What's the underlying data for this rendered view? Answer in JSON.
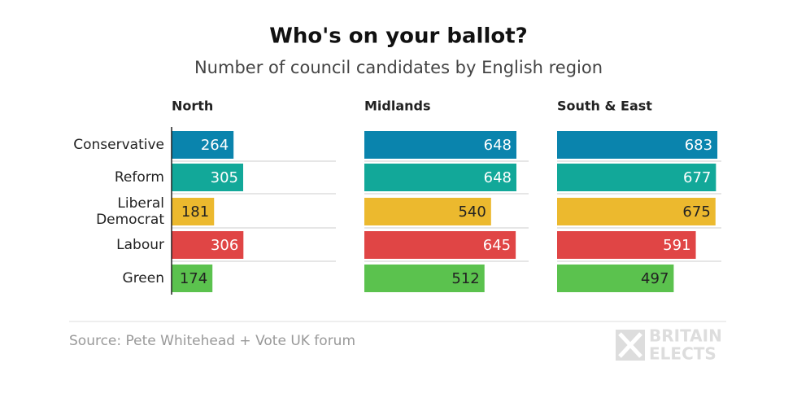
{
  "chart_data": {
    "type": "bar",
    "orientation": "horizontal",
    "layout": "facets",
    "title": "Who's on your ballot?",
    "subtitle": "Number of council candidates by English region",
    "categories": [
      "Conservative",
      "Reform",
      "Liberal Democrat",
      "Labour",
      "Green"
    ],
    "colors": [
      "#0a84ad",
      "#12a899",
      "#ecb92e",
      "#e04545",
      "#5bc24e"
    ],
    "label_colors": [
      "#ffffff",
      "#ffffff",
      "#222222",
      "#ffffff",
      "#222222"
    ],
    "series": [
      {
        "name": "North",
        "values": [
          264,
          305,
          181,
          306,
          174
        ]
      },
      {
        "name": "Midlands",
        "values": [
          648,
          648,
          540,
          645,
          512
        ]
      },
      {
        "name": "South & East",
        "values": [
          683,
          677,
          675,
          591,
          497
        ]
      }
    ],
    "xlim": [
      0,
      700
    ],
    "source": "Source: Pete Whitehead + Vote UK forum",
    "logo": [
      "BRITAIN",
      "ELECTS"
    ]
  }
}
